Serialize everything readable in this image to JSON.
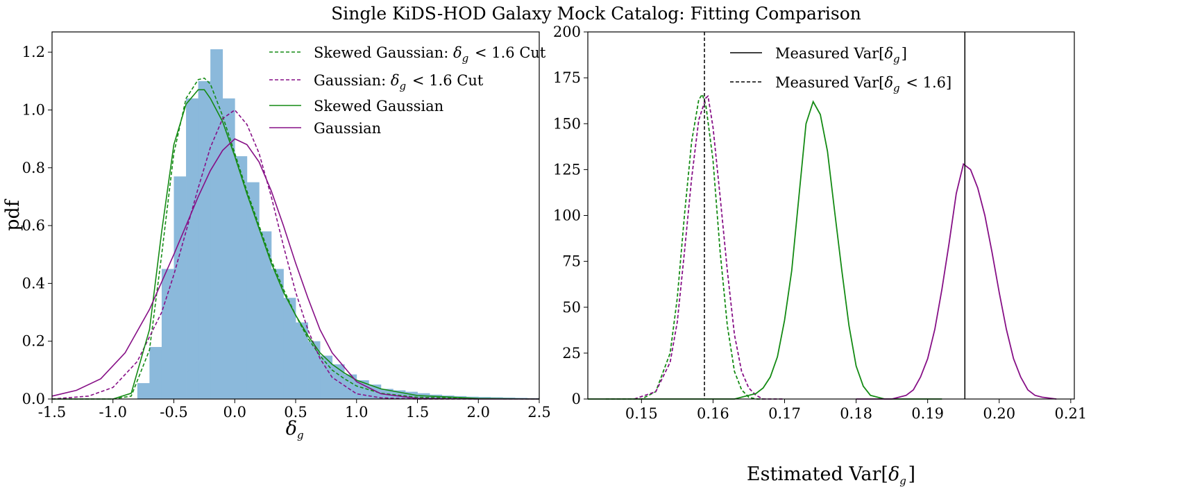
{
  "figure": {
    "title": "Single KiDS-HOD Galaxy Mock Catalog: Fitting Comparison"
  },
  "colors": {
    "histogram": "#8bb9db",
    "green": "#138a13",
    "purple": "#860f86",
    "black": "#000000"
  },
  "chart_data": [
    {
      "type": "histogram_with_lines",
      "xlabel": "δg",
      "ylabel": "pdf",
      "xlim": [
        -1.5,
        2.5
      ],
      "ylim": [
        0.0,
        1.27
      ],
      "xticks": [
        "-1.5",
        "-1.0",
        "-0.5",
        "0.0",
        "0.5",
        "1.0",
        "1.5",
        "2.0",
        "2.5"
      ],
      "yticks": [
        "0.0",
        "0.2",
        "0.4",
        "0.6",
        "0.8",
        "1.0",
        "1.2"
      ],
      "legend_position": "top-right",
      "histogram": {
        "bin_edges": [
          -0.8,
          -0.7,
          -0.6,
          -0.5,
          -0.4,
          -0.3,
          -0.2,
          -0.1,
          0.0,
          0.1,
          0.2,
          0.3,
          0.4,
          0.5,
          0.6,
          0.7,
          0.8,
          0.9,
          1.0,
          1.1,
          1.2,
          1.3,
          1.4,
          1.5,
          1.6,
          1.7,
          1.8,
          1.9,
          2.0,
          2.1,
          2.2,
          2.3,
          2.4,
          2.5
        ],
        "values": [
          0.055,
          0.18,
          0.45,
          0.77,
          1.04,
          1.1,
          1.21,
          1.04,
          0.84,
          0.75,
          0.58,
          0.45,
          0.35,
          0.265,
          0.2,
          0.15,
          0.12,
          0.085,
          0.065,
          0.05,
          0.035,
          0.03,
          0.025,
          0.02,
          0.015,
          0.012,
          0.01,
          0.008,
          0.007,
          0.006,
          0.005,
          0.004,
          0.003
        ]
      },
      "series": [
        {
          "name": "Skewed Gaussian: δg < 1.6 Cut",
          "color": "green",
          "dash": true,
          "x": [
            -1.5,
            -1.0,
            -0.85,
            -0.7,
            -0.6,
            -0.5,
            -0.4,
            -0.3,
            -0.25,
            -0.2,
            -0.1,
            0.0,
            0.1,
            0.2,
            0.3,
            0.4,
            0.5,
            0.6,
            0.7,
            0.8,
            0.9,
            1.0,
            1.2,
            1.5,
            2.0,
            2.5
          ],
          "y": [
            0.0,
            0.0,
            0.01,
            0.17,
            0.5,
            0.85,
            1.04,
            1.105,
            1.11,
            1.09,
            0.98,
            0.85,
            0.72,
            0.6,
            0.48,
            0.38,
            0.29,
            0.21,
            0.15,
            0.1,
            0.07,
            0.045,
            0.02,
            0.006,
            0.001,
            0.0
          ]
        },
        {
          "name": "Gaussian: δg < 1.6 Cut",
          "color": "purple",
          "dash": true,
          "x": [
            -1.5,
            -1.2,
            -1.0,
            -0.8,
            -0.6,
            -0.5,
            -0.4,
            -0.3,
            -0.2,
            -0.1,
            0.0,
            0.1,
            0.2,
            0.3,
            0.4,
            0.5,
            0.6,
            0.7,
            0.8,
            1.0,
            1.2,
            1.5,
            2.0
          ],
          "y": [
            0.0,
            0.01,
            0.04,
            0.13,
            0.3,
            0.43,
            0.58,
            0.73,
            0.87,
            0.97,
            1.0,
            0.95,
            0.85,
            0.7,
            0.53,
            0.37,
            0.24,
            0.14,
            0.075,
            0.018,
            0.004,
            0.0,
            0.0
          ]
        },
        {
          "name": "Skewed Gaussian",
          "color": "green",
          "dash": false,
          "x": [
            -1.5,
            -1.0,
            -0.85,
            -0.7,
            -0.6,
            -0.5,
            -0.4,
            -0.3,
            -0.25,
            -0.2,
            -0.1,
            0.0,
            0.1,
            0.2,
            0.3,
            0.4,
            0.5,
            0.6,
            0.7,
            0.8,
            0.9,
            1.0,
            1.2,
            1.5,
            2.0,
            2.5
          ],
          "y": [
            0.0,
            0.0,
            0.02,
            0.24,
            0.58,
            0.88,
            1.02,
            1.07,
            1.07,
            1.04,
            0.96,
            0.84,
            0.71,
            0.59,
            0.47,
            0.37,
            0.29,
            0.22,
            0.16,
            0.12,
            0.09,
            0.065,
            0.035,
            0.012,
            0.002,
            0.0
          ]
        },
        {
          "name": "Gaussian",
          "color": "purple",
          "dash": false,
          "x": [
            -1.5,
            -1.3,
            -1.1,
            -0.9,
            -0.7,
            -0.5,
            -0.4,
            -0.3,
            -0.2,
            -0.1,
            0.0,
            0.1,
            0.2,
            0.3,
            0.4,
            0.5,
            0.6,
            0.7,
            0.8,
            1.0,
            1.2,
            1.5,
            2.0,
            2.5
          ],
          "y": [
            0.01,
            0.03,
            0.07,
            0.16,
            0.31,
            0.5,
            0.6,
            0.7,
            0.79,
            0.86,
            0.9,
            0.88,
            0.82,
            0.72,
            0.6,
            0.47,
            0.35,
            0.24,
            0.16,
            0.06,
            0.018,
            0.002,
            0.0,
            0.0
          ]
        }
      ]
    },
    {
      "type": "line",
      "xlabel": "Estimated Var[δg]",
      "ylabel": "",
      "xlim": [
        0.1425,
        0.2105
      ],
      "ylim": [
        0,
        200
      ],
      "xticks": [
        "0.15",
        "0.16",
        "0.17",
        "0.18",
        "0.19",
        "0.20",
        "0.21"
      ],
      "yticks": [
        "0",
        "25",
        "50",
        "75",
        "100",
        "125",
        "150",
        "175",
        "200"
      ],
      "legend_position": "top-center",
      "vlines": [
        {
          "name": "Measured Var[δg]",
          "x": 0.1952,
          "dash": false
        },
        {
          "name": "Measured Var[δg < 1.6]",
          "x": 0.1588,
          "dash": true
        }
      ],
      "series": [
        {
          "color": "green",
          "dash": true,
          "x": [
            0.145,
            0.15,
            0.152,
            0.154,
            0.155,
            0.156,
            0.157,
            0.158,
            0.1585,
            0.159,
            0.16,
            0.161,
            0.162,
            0.163,
            0.164,
            0.165,
            0.166,
            0.167
          ],
          "y": [
            0,
            0,
            4,
            25,
            55,
            100,
            140,
            163,
            166,
            160,
            130,
            80,
            40,
            15,
            5,
            1,
            0,
            0
          ]
        },
        {
          "color": "purple",
          "dash": true,
          "x": [
            0.149,
            0.152,
            0.154,
            0.155,
            0.156,
            0.157,
            0.158,
            0.159,
            0.1593,
            0.16,
            0.161,
            0.162,
            0.163,
            0.164,
            0.165,
            0.166,
            0.167,
            0.17
          ],
          "y": [
            0,
            4,
            20,
            42,
            80,
            120,
            152,
            164,
            165,
            148,
            110,
            70,
            35,
            15,
            6,
            2,
            0,
            0
          ]
        },
        {
          "color": "green",
          "dash": false,
          "x": [
            0.14,
            0.163,
            0.166,
            0.167,
            0.168,
            0.169,
            0.17,
            0.171,
            0.172,
            0.173,
            0.174,
            0.175,
            0.176,
            0.177,
            0.178,
            0.179,
            0.18,
            0.181,
            0.182,
            0.184,
            0.192
          ],
          "y": [
            0,
            0,
            3,
            6,
            12,
            23,
            43,
            70,
            110,
            150,
            162,
            155,
            135,
            102,
            70,
            40,
            18,
            7,
            2,
            0,
            0
          ]
        },
        {
          "color": "purple",
          "dash": false,
          "x": [
            0.18,
            0.185,
            0.186,
            0.187,
            0.188,
            0.189,
            0.19,
            0.191,
            0.192,
            0.193,
            0.194,
            0.195,
            0.196,
            0.197,
            0.198,
            0.199,
            0.2,
            0.201,
            0.202,
            0.203,
            0.204,
            0.205,
            0.206,
            0.208
          ],
          "y": [
            0,
            0,
            1,
            2,
            5,
            12,
            22,
            38,
            60,
            85,
            112,
            128,
            125,
            115,
            100,
            80,
            58,
            38,
            22,
            12,
            5,
            2,
            1,
            0
          ]
        }
      ]
    }
  ]
}
